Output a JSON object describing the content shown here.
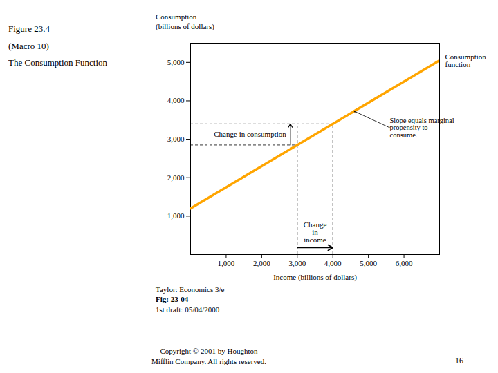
{
  "chart_data": {
    "type": "line",
    "title": "Figure 23.4\n(Macro 10)\nThe Consumption Function",
    "ylabel": "Consumption\n(billions of dollars)",
    "xlabel": "Income (billions of dollars)",
    "x": [
      0,
      7000
    ],
    "values": [
      1200,
      5050
    ],
    "color": "#FFA500",
    "xlim": [
      0,
      7000
    ],
    "ylim": [
      0,
      5500
    ],
    "xticks": [
      {
        "value": 1000,
        "label": "1,000"
      },
      {
        "value": 2000,
        "label": "2,000"
      },
      {
        "value": 3000,
        "label": "3,000"
      },
      {
        "value": 4000,
        "label": "4,000"
      },
      {
        "value": 5000,
        "label": "5,000"
      },
      {
        "value": 6000,
        "label": "6,000"
      }
    ],
    "yticks": [
      {
        "value": 1000,
        "label": "1,000"
      },
      {
        "value": 2000,
        "label": "2,000"
      },
      {
        "value": 3000,
        "label": "3,000"
      },
      {
        "value": 4000,
        "label": "4,000"
      },
      {
        "value": 5000,
        "label": "5,000"
      }
    ],
    "reference_points": [
      {
        "x": 3000,
        "y": 2850
      },
      {
        "x": 4000,
        "y": 3400
      }
    ],
    "annotations": [
      {
        "text": "Consumption\nfunction"
      },
      {
        "text": "Change in consumption"
      },
      {
        "text": "Change\nin\nincome"
      },
      {
        "text": "Slope equals marginal\npropensity to\nconsume.",
        "color": "#FFFFC8",
        "edge_color": "#999999"
      }
    ],
    "footer": [
      "Taylor: Economics 3/e",
      "Fig: 23-04",
      "1st draft: 05/04/2000"
    ],
    "copyright": "Copyright © 2001 by Houghton\nMifflin Company. All rights reserved.",
    "page_number": "16",
    "background_color": "#ffffff"
  }
}
